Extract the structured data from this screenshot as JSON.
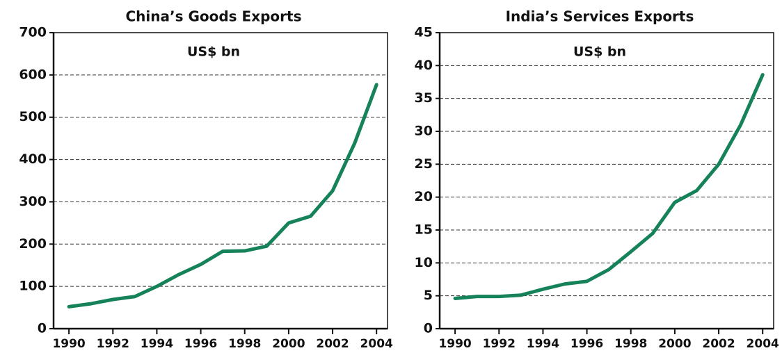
{
  "chart_data": [
    {
      "type": "line",
      "title": "China’s Goods Exports",
      "subtitle": "US$ bn",
      "x": [
        1990,
        1991,
        1992,
        1993,
        1994,
        1995,
        1996,
        1997,
        1998,
        1999,
        2000,
        2001,
        2002,
        2003,
        2004
      ],
      "series": [
        {
          "name": "China",
          "color": "#16825a",
          "values": [
            52,
            59,
            69,
            76,
            100,
            128,
            152,
            183,
            184,
            195,
            250,
            266,
            326,
            438,
            577
          ]
        }
      ],
      "xlim": [
        1989.3,
        2004.5
      ],
      "xticks": [
        1990,
        1992,
        1994,
        1996,
        1998,
        2000,
        2002,
        2004
      ],
      "ylim": [
        0,
        700
      ],
      "yticks": [
        0,
        100,
        200,
        300,
        400,
        500,
        600,
        700
      ],
      "grid": true
    },
    {
      "type": "line",
      "title": "India’s Services Exports",
      "subtitle": "US$ bn",
      "x": [
        1990,
        1991,
        1992,
        1993,
        1994,
        1995,
        1996,
        1997,
        1998,
        1999,
        2000,
        2001,
        2002,
        2003,
        2004
      ],
      "series": [
        {
          "name": "India",
          "color": "#16825a",
          "values": [
            4.6,
            4.9,
            4.9,
            5.1,
            6.0,
            6.8,
            7.2,
            9.0,
            11.7,
            14.5,
            19.2,
            21.0,
            25,
            31,
            38.6
          ]
        }
      ],
      "xlim": [
        1989.3,
        2004.5
      ],
      "xticks": [
        1990,
        1992,
        1994,
        1996,
        1998,
        2000,
        2002,
        2004
      ],
      "ylim": [
        0,
        45
      ],
      "yticks": [
        0,
        5,
        10,
        15,
        20,
        25,
        30,
        35,
        40,
        45
      ],
      "grid": true
    }
  ]
}
